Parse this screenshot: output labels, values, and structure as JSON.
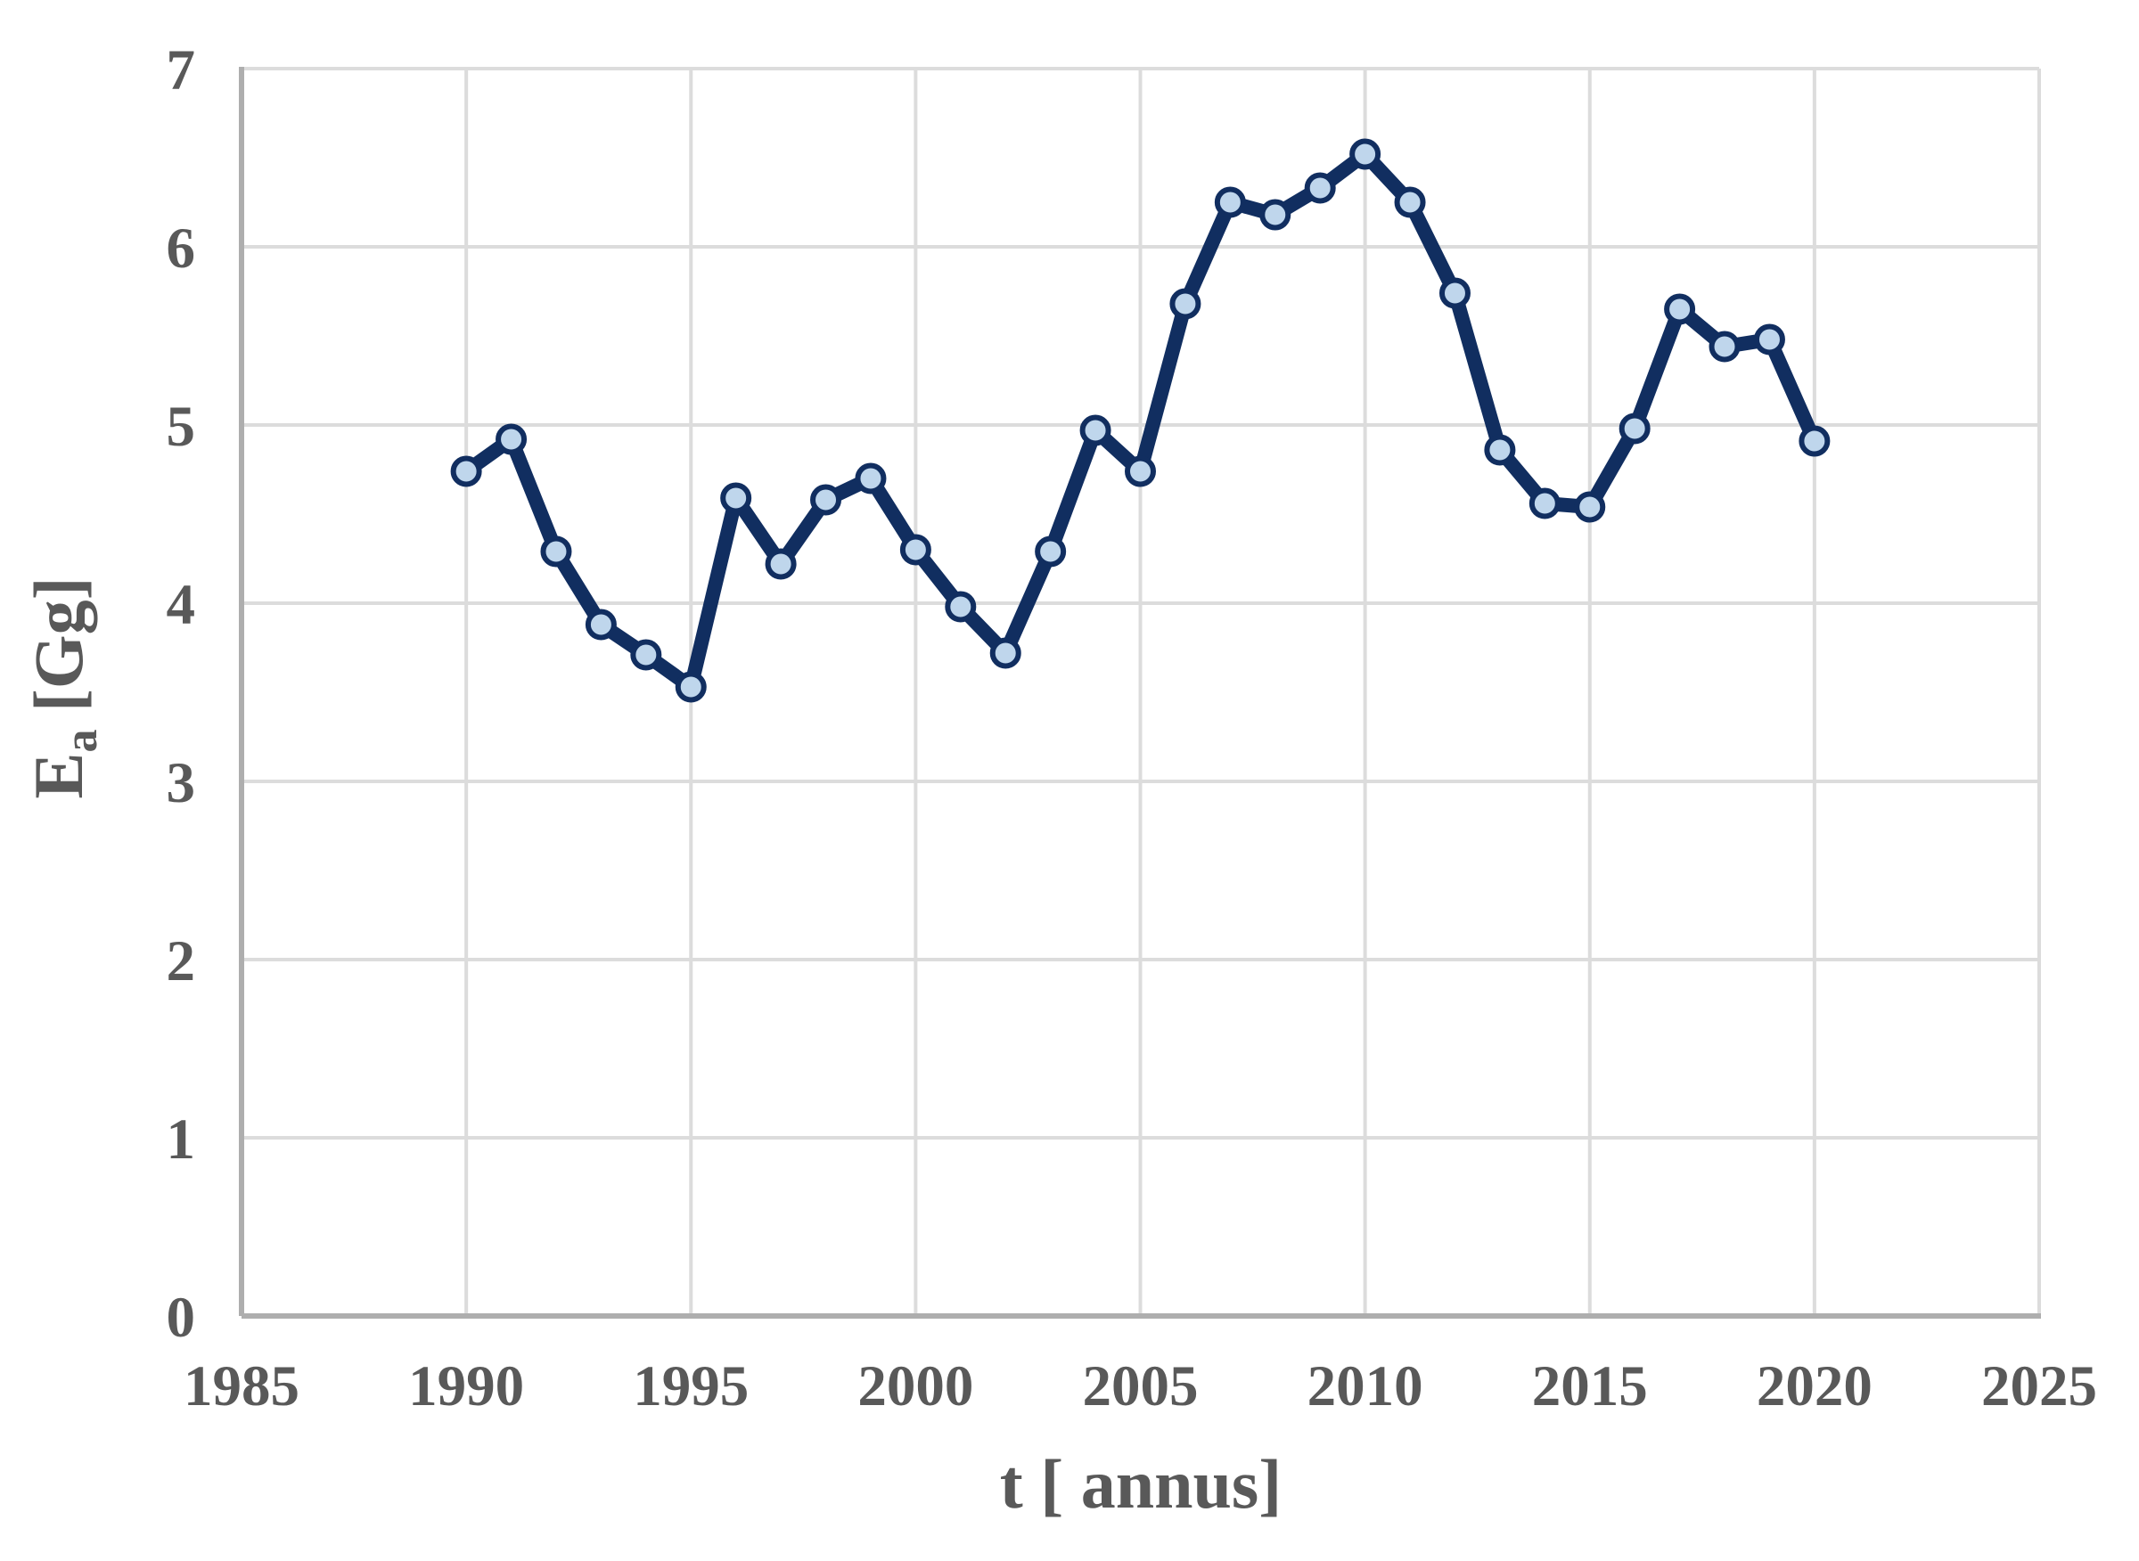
{
  "chart_data": {
    "type": "line",
    "title": "",
    "xlabel": "t [ annus]",
    "ylabel": {
      "base": "E",
      "sub": "a",
      "unit": " [Gg]"
    },
    "x": [
      1990,
      1991,
      1992,
      1993,
      1994,
      1995,
      1996,
      1997,
      1998,
      1999,
      2000,
      2001,
      2002,
      2003,
      2004,
      2005,
      2006,
      2007,
      2008,
      2009,
      2010,
      2011,
      2012,
      2013,
      2014,
      2015,
      2016,
      2017,
      2018,
      2019,
      2020
    ],
    "y": [
      4.74,
      4.92,
      4.29,
      3.88,
      3.71,
      3.53,
      4.59,
      4.22,
      4.58,
      4.7,
      4.3,
      3.98,
      3.72,
      4.29,
      4.97,
      4.74,
      5.68,
      6.25,
      6.18,
      6.33,
      6.52,
      6.25,
      5.74,
      4.86,
      4.56,
      4.54,
      4.98,
      5.65,
      5.44,
      5.48,
      4.91
    ],
    "xlim": [
      1985,
      2025
    ],
    "ylim": [
      0,
      7
    ],
    "xticks": [
      1985,
      1990,
      1995,
      2000,
      2005,
      2010,
      2015,
      2020,
      2025
    ],
    "xtick_labels": [
      "1985",
      "1990",
      "1995",
      "2000",
      "2005",
      "2010",
      "2015",
      "2020",
      "2025"
    ],
    "yticks": [
      0,
      1,
      2,
      3,
      4,
      5,
      6,
      7
    ],
    "ytick_labels": [
      "0",
      "1",
      "2",
      "3",
      "4",
      "5",
      "6",
      "7"
    ],
    "grid": true,
    "legend": "none",
    "colors": {
      "line": "#112e60",
      "marker_fill": "#bfd6ec",
      "grid": "#dcdcdc",
      "axis": "#aeaeae",
      "text": "#595959",
      "background": "#ffffff"
    }
  }
}
